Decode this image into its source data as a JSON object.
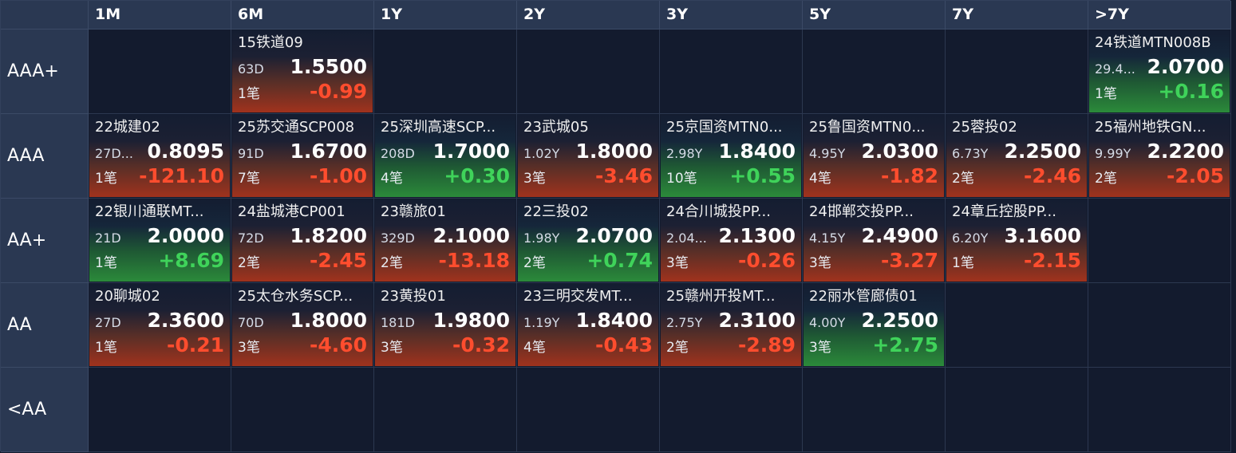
{
  "columns": [
    "",
    "1M",
    "6M",
    "1Y",
    "2Y",
    "3Y",
    "5Y",
    "7Y",
    ">7Y"
  ],
  "rows": [
    {
      "label": "AAA+",
      "cells": [
        null,
        {
          "name": "15铁道09",
          "term": "63D",
          "price": "1.5500",
          "deals": "1笔",
          "change": "-0.99",
          "trend": "neg"
        },
        null,
        null,
        null,
        null,
        null,
        {
          "name": "24铁道MTN008B",
          "term": "29.4...",
          "price": "2.0700",
          "deals": "1笔",
          "change": "+0.16",
          "trend": "pos"
        }
      ]
    },
    {
      "label": "AAA",
      "cells": [
        {
          "name": "22城建02",
          "term": "27D...",
          "price": "0.8095",
          "deals": "1笔",
          "change": "-121.10",
          "trend": "neg"
        },
        {
          "name": "25苏交通SCP008",
          "term": "91D",
          "price": "1.6700",
          "deals": "7笔",
          "change": "-1.00",
          "trend": "neg"
        },
        {
          "name": "25深圳高速SCP...",
          "term": "208D",
          "price": "1.7000",
          "deals": "4笔",
          "change": "+0.30",
          "trend": "pos"
        },
        {
          "name": "23武城05",
          "term": "1.02Y",
          "price": "1.8000",
          "deals": "3笔",
          "change": "-3.46",
          "trend": "neg"
        },
        {
          "name": "25京国资MTN0...",
          "term": "2.98Y",
          "price": "1.8400",
          "deals": "10笔",
          "change": "+0.55",
          "trend": "pos"
        },
        {
          "name": "25鲁国资MTN0...",
          "term": "4.95Y",
          "price": "2.0300",
          "deals": "4笔",
          "change": "-1.82",
          "trend": "neg"
        },
        {
          "name": "25蓉投02",
          "term": "6.73Y",
          "price": "2.2500",
          "deals": "2笔",
          "change": "-2.46",
          "trend": "neg"
        },
        {
          "name": "25福州地铁GN...",
          "term": "9.99Y",
          "price": "2.2200",
          "deals": "2笔",
          "change": "-2.05",
          "trend": "neg"
        }
      ]
    },
    {
      "label": "AA+",
      "cells": [
        {
          "name": "22银川通联MT...",
          "term": "21D",
          "price": "2.0000",
          "deals": "1笔",
          "change": "+8.69",
          "trend": "pos"
        },
        {
          "name": "24盐城港CP001",
          "term": "72D",
          "price": "1.8200",
          "deals": "2笔",
          "change": "-2.45",
          "trend": "neg"
        },
        {
          "name": "23赣旅01",
          "term": "329D",
          "price": "2.1000",
          "deals": "2笔",
          "change": "-13.18",
          "trend": "neg"
        },
        {
          "name": "22三投02",
          "term": "1.98Y",
          "price": "2.0700",
          "deals": "2笔",
          "change": "+0.74",
          "trend": "pos"
        },
        {
          "name": "24合川城投PP...",
          "term": "2.04...",
          "price": "2.1300",
          "deals": "3笔",
          "change": "-0.26",
          "trend": "neg"
        },
        {
          "name": "24邯郸交投PP...",
          "term": "4.15Y",
          "price": "2.4900",
          "deals": "3笔",
          "change": "-3.27",
          "trend": "neg"
        },
        {
          "name": "24章丘控股PP...",
          "term": "6.20Y",
          "price": "3.1600",
          "deals": "1笔",
          "change": "-2.15",
          "trend": "neg"
        },
        null
      ]
    },
    {
      "label": "AA",
      "cells": [
        {
          "name": "20聊城02",
          "term": "27D",
          "price": "2.3600",
          "deals": "1笔",
          "change": "-0.21",
          "trend": "neg"
        },
        {
          "name": "25太仓水务SCP...",
          "term": "70D",
          "price": "1.8000",
          "deals": "3笔",
          "change": "-4.60",
          "trend": "neg"
        },
        {
          "name": "23黄投01",
          "term": "181D",
          "price": "1.9800",
          "deals": "3笔",
          "change": "-0.32",
          "trend": "neg"
        },
        {
          "name": "23三明交发MT...",
          "term": "1.19Y",
          "price": "1.8400",
          "deals": "4笔",
          "change": "-0.43",
          "trend": "neg"
        },
        {
          "name": "25赣州开投MT...",
          "term": "2.75Y",
          "price": "2.3100",
          "deals": "2笔",
          "change": "-2.89",
          "trend": "neg"
        },
        {
          "name": "22丽水管廊债01",
          "term": "4.00Y",
          "price": "2.2500",
          "deals": "3笔",
          "change": "+2.75",
          "trend": "pos"
        },
        null,
        null
      ]
    },
    {
      "label": "<AA",
      "cells": [
        null,
        null,
        null,
        null,
        null,
        null,
        null,
        null
      ]
    }
  ]
}
